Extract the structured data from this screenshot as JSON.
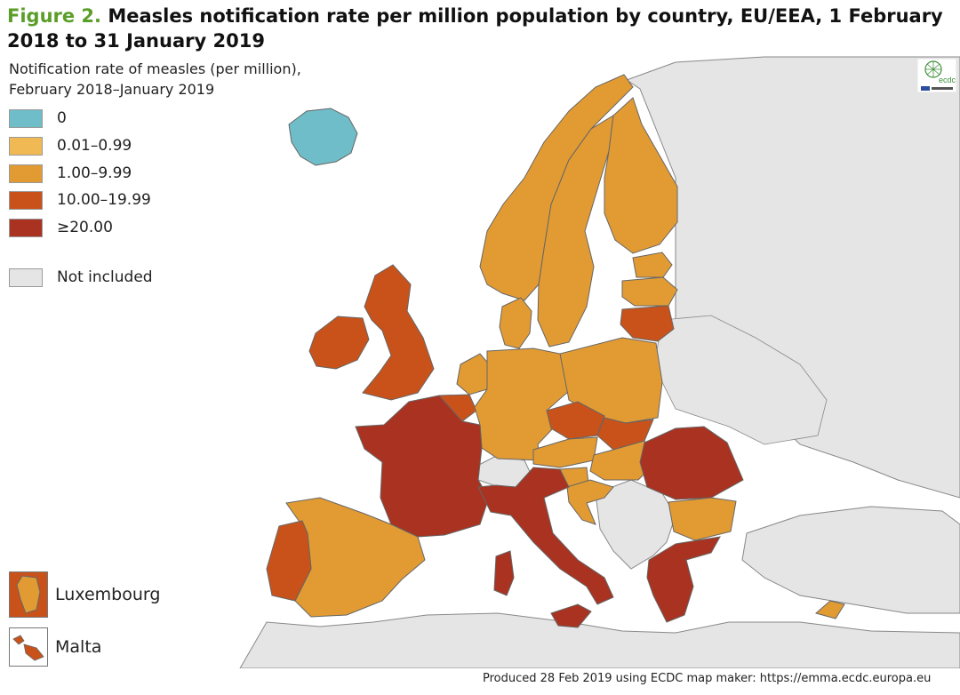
{
  "title": {
    "figure_label": "Figure 2.",
    "text": "Measles notification rate per million population by country, EU/EEA, 1 February 2018 to 31 January 2019"
  },
  "legend": {
    "title_line1": "Notification rate of measles (per million),",
    "title_line2": "February 2018–January 2019",
    "items": [
      {
        "label": "0",
        "color": "#6fbdc9"
      },
      {
        "label": "0.01–0.99",
        "color": "#f0b953"
      },
      {
        "label": "1.00–9.99",
        "color": "#e29b33"
      },
      {
        "label": "10.00–19.99",
        "color": "#c9521a"
      },
      {
        "label": "≥20.00",
        "color": "#a93220"
      }
    ],
    "not_included": {
      "label": "Not included",
      "color": "#e5e5e5"
    }
  },
  "insets": [
    {
      "label": "Luxembourg",
      "color": "#e29b33"
    },
    {
      "label": "Malta",
      "color": "#c9521a"
    }
  ],
  "logo": {
    "icon": "ecdc-logo-icon",
    "text": "ecdc"
  },
  "footer": "Produced 28 Feb 2019 using ECDC map maker: https://emma.ecdc.europa.eu",
  "map_data": {
    "sea_color": "#ffffff",
    "non_eu_color": "#e5e5e5",
    "countries": [
      {
        "name": "Iceland",
        "category": "0"
      },
      {
        "name": "Norway",
        "category": "1.00–9.99"
      },
      {
        "name": "Sweden",
        "category": "1.00–9.99"
      },
      {
        "name": "Finland",
        "category": "1.00–9.99"
      },
      {
        "name": "Estonia",
        "category": "1.00–9.99"
      },
      {
        "name": "Latvia",
        "category": "1.00–9.99"
      },
      {
        "name": "Lithuania",
        "category": "10.00–19.99"
      },
      {
        "name": "Denmark",
        "category": "1.00–9.99"
      },
      {
        "name": "Ireland",
        "category": "10.00–19.99"
      },
      {
        "name": "United Kingdom",
        "category": "10.00–19.99"
      },
      {
        "name": "Netherlands",
        "category": "1.00–9.99"
      },
      {
        "name": "Belgium",
        "category": "10.00–19.99"
      },
      {
        "name": "Luxembourg",
        "category": "1.00–9.99"
      },
      {
        "name": "Germany",
        "category": "1.00–9.99"
      },
      {
        "name": "Poland",
        "category": "1.00–9.99"
      },
      {
        "name": "Czechia",
        "category": "10.00–19.99"
      },
      {
        "name": "Slovakia",
        "category": "10.00–19.99"
      },
      {
        "name": "Austria",
        "category": "1.00–9.99"
      },
      {
        "name": "Hungary",
        "category": "1.00–9.99"
      },
      {
        "name": "Slovenia",
        "category": "1.00–9.99"
      },
      {
        "name": "Croatia",
        "category": "1.00–9.99"
      },
      {
        "name": "Romania",
        "category": "≥20.00"
      },
      {
        "name": "Bulgaria",
        "category": "1.00–9.99"
      },
      {
        "name": "Greece",
        "category": "≥20.00"
      },
      {
        "name": "Cyprus",
        "category": "1.00–9.99"
      },
      {
        "name": "France",
        "category": "≥20.00"
      },
      {
        "name": "Italy",
        "category": "≥20.00"
      },
      {
        "name": "Malta",
        "category": "10.00–19.99"
      },
      {
        "name": "Spain",
        "category": "1.00–9.99"
      },
      {
        "name": "Portugal",
        "category": "10.00–19.99"
      }
    ]
  }
}
